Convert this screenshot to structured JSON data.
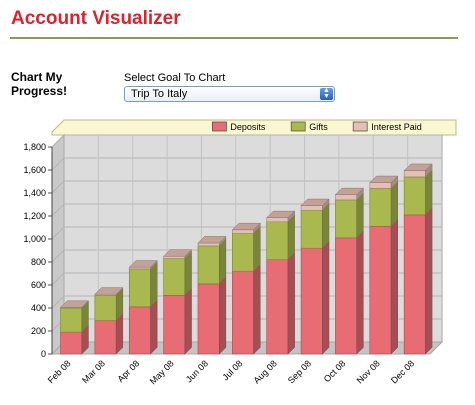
{
  "header": {
    "title": "Account Visualizer"
  },
  "sidebar": {
    "heading": "Chart My\nProgress!"
  },
  "goal_select": {
    "label": "Select Goal To Chart",
    "value": "Trip To Italy"
  },
  "colors": {
    "title": "#d9232f",
    "deposits": "#e86c74",
    "gifts": "#aab94f",
    "interest_paid": "#e3bfb4",
    "legend_bg": "#fbf7d0"
  },
  "chart_data": {
    "type": "bar",
    "stacked": true,
    "three_d": true,
    "categories": [
      "Feb 08",
      "Mar 08",
      "Apr 08",
      "May 08",
      "Jun 08",
      "Jul 08",
      "Aug 08",
      "Sep 08",
      "Oct 08",
      "Nov 08",
      "Dec 08"
    ],
    "series": [
      {
        "name": "Deposits",
        "values": [
          190,
          290,
          410,
          510,
          610,
          720,
          820,
          920,
          1010,
          1110,
          1210
        ]
      },
      {
        "name": "Gifts",
        "values": [
          210,
          220,
          330,
          320,
          330,
          330,
          330,
          330,
          330,
          330,
          330
        ]
      },
      {
        "name": "Interest Paid",
        "values": [
          5,
          10,
          15,
          20,
          25,
          30,
          35,
          40,
          45,
          50,
          55
        ]
      }
    ],
    "ylim": [
      0,
      1800
    ],
    "yticks": [
      0,
      200,
      400,
      600,
      800,
      1000,
      1200,
      1400,
      1600,
      1800
    ],
    "ytick_labels": [
      "0",
      "200",
      "400",
      "600",
      "800",
      "1,000",
      "1,200",
      "1,400",
      "1,600",
      "1,800"
    ],
    "grid": true,
    "legend_position": "top-right"
  }
}
